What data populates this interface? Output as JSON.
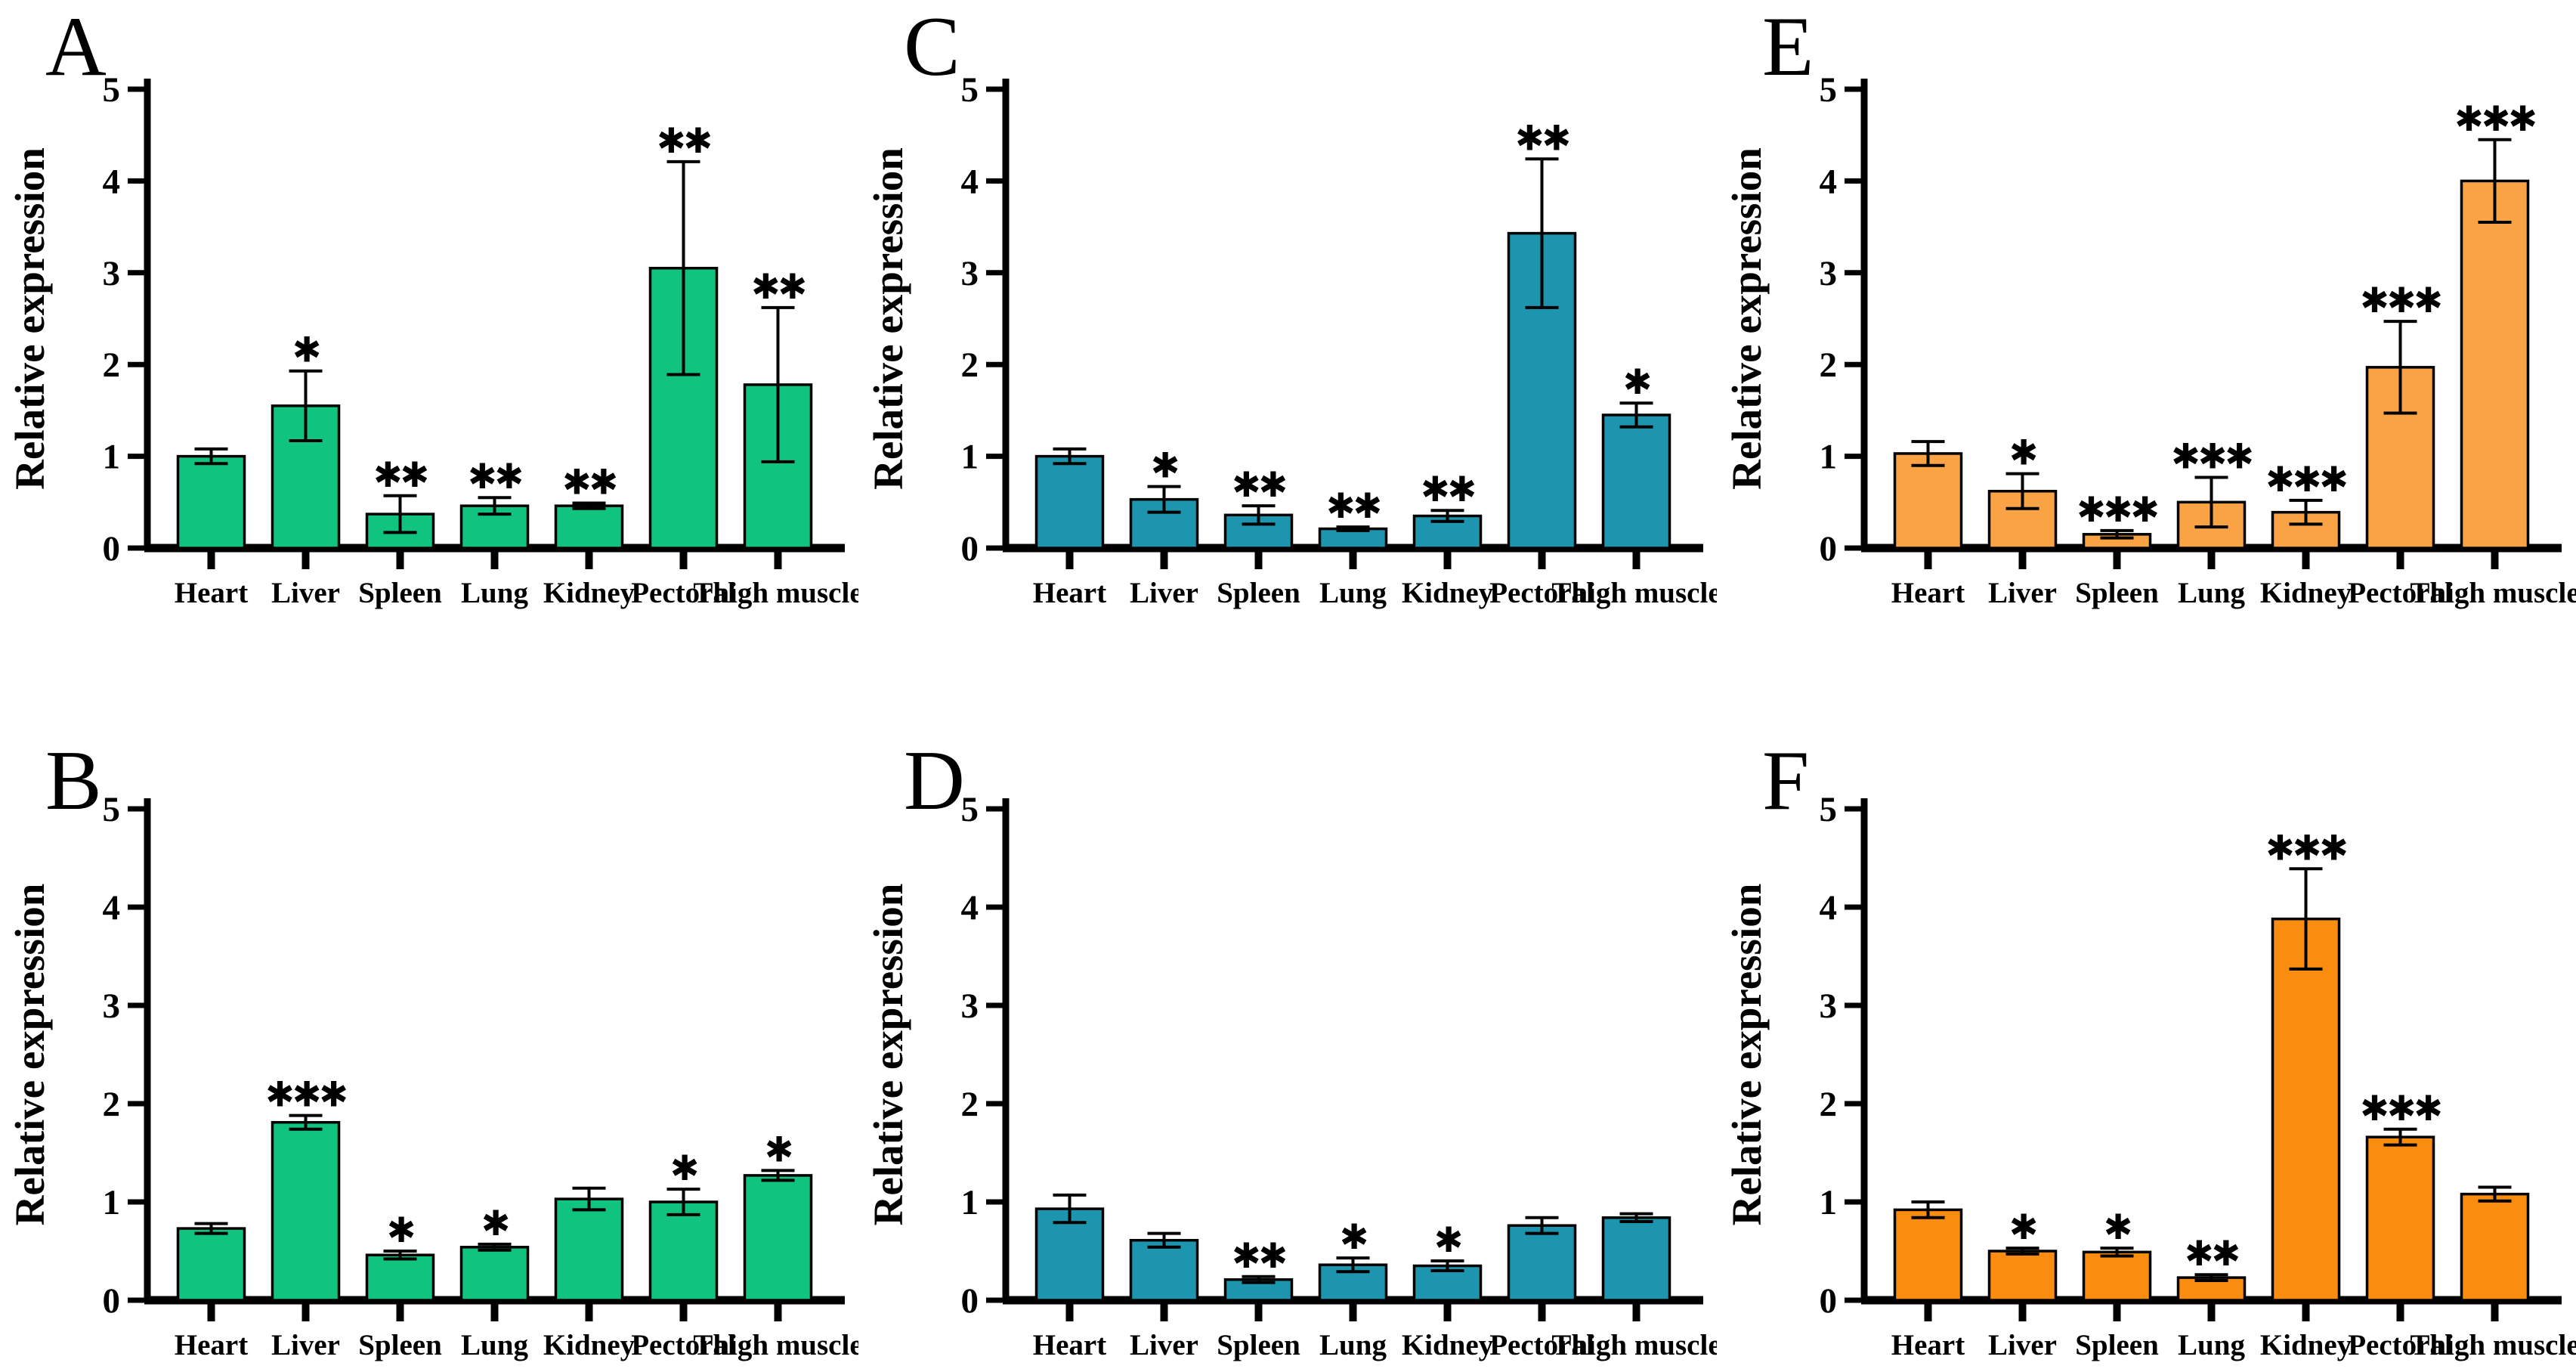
{
  "figure": {
    "ylabel": "Relative expression",
    "categories": [
      "Heart",
      "Liver",
      "Spleen",
      "Lung",
      "Kidney",
      "Pectoral",
      "Thigh muscle"
    ],
    "ylim": [
      0,
      5
    ],
    "yticks": [
      0,
      1,
      2,
      3,
      4,
      5
    ],
    "colors": {
      "green": "#10c37e",
      "teal": "#1e95ae",
      "light_orange": "#faa344",
      "dark_orange": "#fa8c0f"
    }
  },
  "chart_data": [
    {
      "panel": "A",
      "type": "bar",
      "row": "top",
      "bar_color": "#10c37e",
      "ylabel": "Relative expression",
      "ylim": [
        0,
        5
      ],
      "yticks": [
        0,
        1,
        2,
        3,
        4,
        5
      ],
      "categories": [
        "Heart",
        "Liver",
        "Spleen",
        "Lung",
        "Kidney",
        "Pectoral",
        "Thigh muscle"
      ],
      "values": [
        1.0,
        1.55,
        0.37,
        0.46,
        0.46,
        3.05,
        1.78
      ],
      "errors": [
        0.08,
        0.38,
        0.2,
        0.09,
        0.03,
        1.16,
        0.84
      ],
      "significance": [
        "",
        "*",
        "**",
        "**",
        "**",
        "**",
        "**"
      ]
    },
    {
      "panel": "C",
      "type": "bar",
      "row": "top",
      "bar_color": "#1e95ae",
      "ylabel": "Relative expression",
      "ylim": [
        0,
        5
      ],
      "yticks": [
        0,
        1,
        2,
        3,
        4,
        5
      ],
      "categories": [
        "Heart",
        "Liver",
        "Spleen",
        "Lung",
        "Kidney",
        "Pectoral",
        "Thigh muscle"
      ],
      "values": [
        1.0,
        0.53,
        0.36,
        0.21,
        0.35,
        3.43,
        1.45
      ],
      "errors": [
        0.08,
        0.14,
        0.1,
        0.02,
        0.06,
        0.81,
        0.13
      ],
      "significance": [
        "",
        "*",
        "**",
        "**",
        "**",
        "**",
        "*"
      ]
    },
    {
      "panel": "E",
      "type": "bar",
      "row": "top",
      "bar_color": "#faa344",
      "ylabel": "Relative expression",
      "ylim": [
        0,
        5
      ],
      "yticks": [
        0,
        1,
        2,
        3,
        4,
        5
      ],
      "categories": [
        "Heart",
        "Liver",
        "Spleen",
        "Lung",
        "Kidney",
        "Pectoral",
        "Thigh muscle"
      ],
      "values": [
        1.03,
        0.62,
        0.15,
        0.5,
        0.39,
        1.97,
        4.0
      ],
      "errors": [
        0.13,
        0.19,
        0.04,
        0.27,
        0.13,
        0.5,
        0.45
      ],
      "significance": [
        "",
        "*",
        "***",
        "***",
        "***",
        "***",
        "***"
      ]
    },
    {
      "panel": "B",
      "type": "bar",
      "row": "bottom",
      "bar_color": "#10c37e",
      "ylabel": "Relative expression",
      "ylim": [
        0,
        5
      ],
      "yticks": [
        0,
        1,
        2,
        3,
        4,
        5
      ],
      "categories": [
        "Heart",
        "Liver",
        "Spleen",
        "Lung",
        "Kidney",
        "Pectoral",
        "Thigh muscle"
      ],
      "values": [
        0.73,
        1.81,
        0.46,
        0.54,
        1.03,
        1.0,
        1.27
      ],
      "errors": [
        0.05,
        0.07,
        0.04,
        0.03,
        0.11,
        0.13,
        0.05
      ],
      "significance": [
        "",
        "***",
        "*",
        "*",
        "",
        "*",
        "*"
      ]
    },
    {
      "panel": "D",
      "type": "bar",
      "row": "bottom",
      "bar_color": "#1e95ae",
      "ylabel": "Relative expression",
      "ylim": [
        0,
        5
      ],
      "yticks": [
        0,
        1,
        2,
        3,
        4,
        5
      ],
      "categories": [
        "Heart",
        "Liver",
        "Spleen",
        "Lung",
        "Kidney",
        "Pectoral",
        "Thigh muscle"
      ],
      "values": [
        0.93,
        0.61,
        0.21,
        0.36,
        0.35,
        0.76,
        0.84
      ],
      "errors": [
        0.14,
        0.07,
        0.03,
        0.07,
        0.05,
        0.08,
        0.04
      ],
      "significance": [
        "",
        "",
        "**",
        "*",
        "*",
        "",
        ""
      ]
    },
    {
      "panel": "F",
      "type": "bar",
      "row": "bottom",
      "bar_color": "#fa8c0f",
      "ylabel": "Relative expression",
      "ylim": [
        0,
        5
      ],
      "yticks": [
        0,
        1,
        2,
        3,
        4,
        5
      ],
      "categories": [
        "Heart",
        "Liver",
        "Spleen",
        "Lung",
        "Kidney",
        "Pectoral",
        "Thigh muscle"
      ],
      "values": [
        0.92,
        0.5,
        0.49,
        0.23,
        3.88,
        1.66,
        1.08
      ],
      "errors": [
        0.08,
        0.03,
        0.04,
        0.03,
        0.51,
        0.08,
        0.07
      ],
      "significance": [
        "",
        "*",
        "*",
        "**",
        "***",
        "***",
        ""
      ]
    }
  ]
}
